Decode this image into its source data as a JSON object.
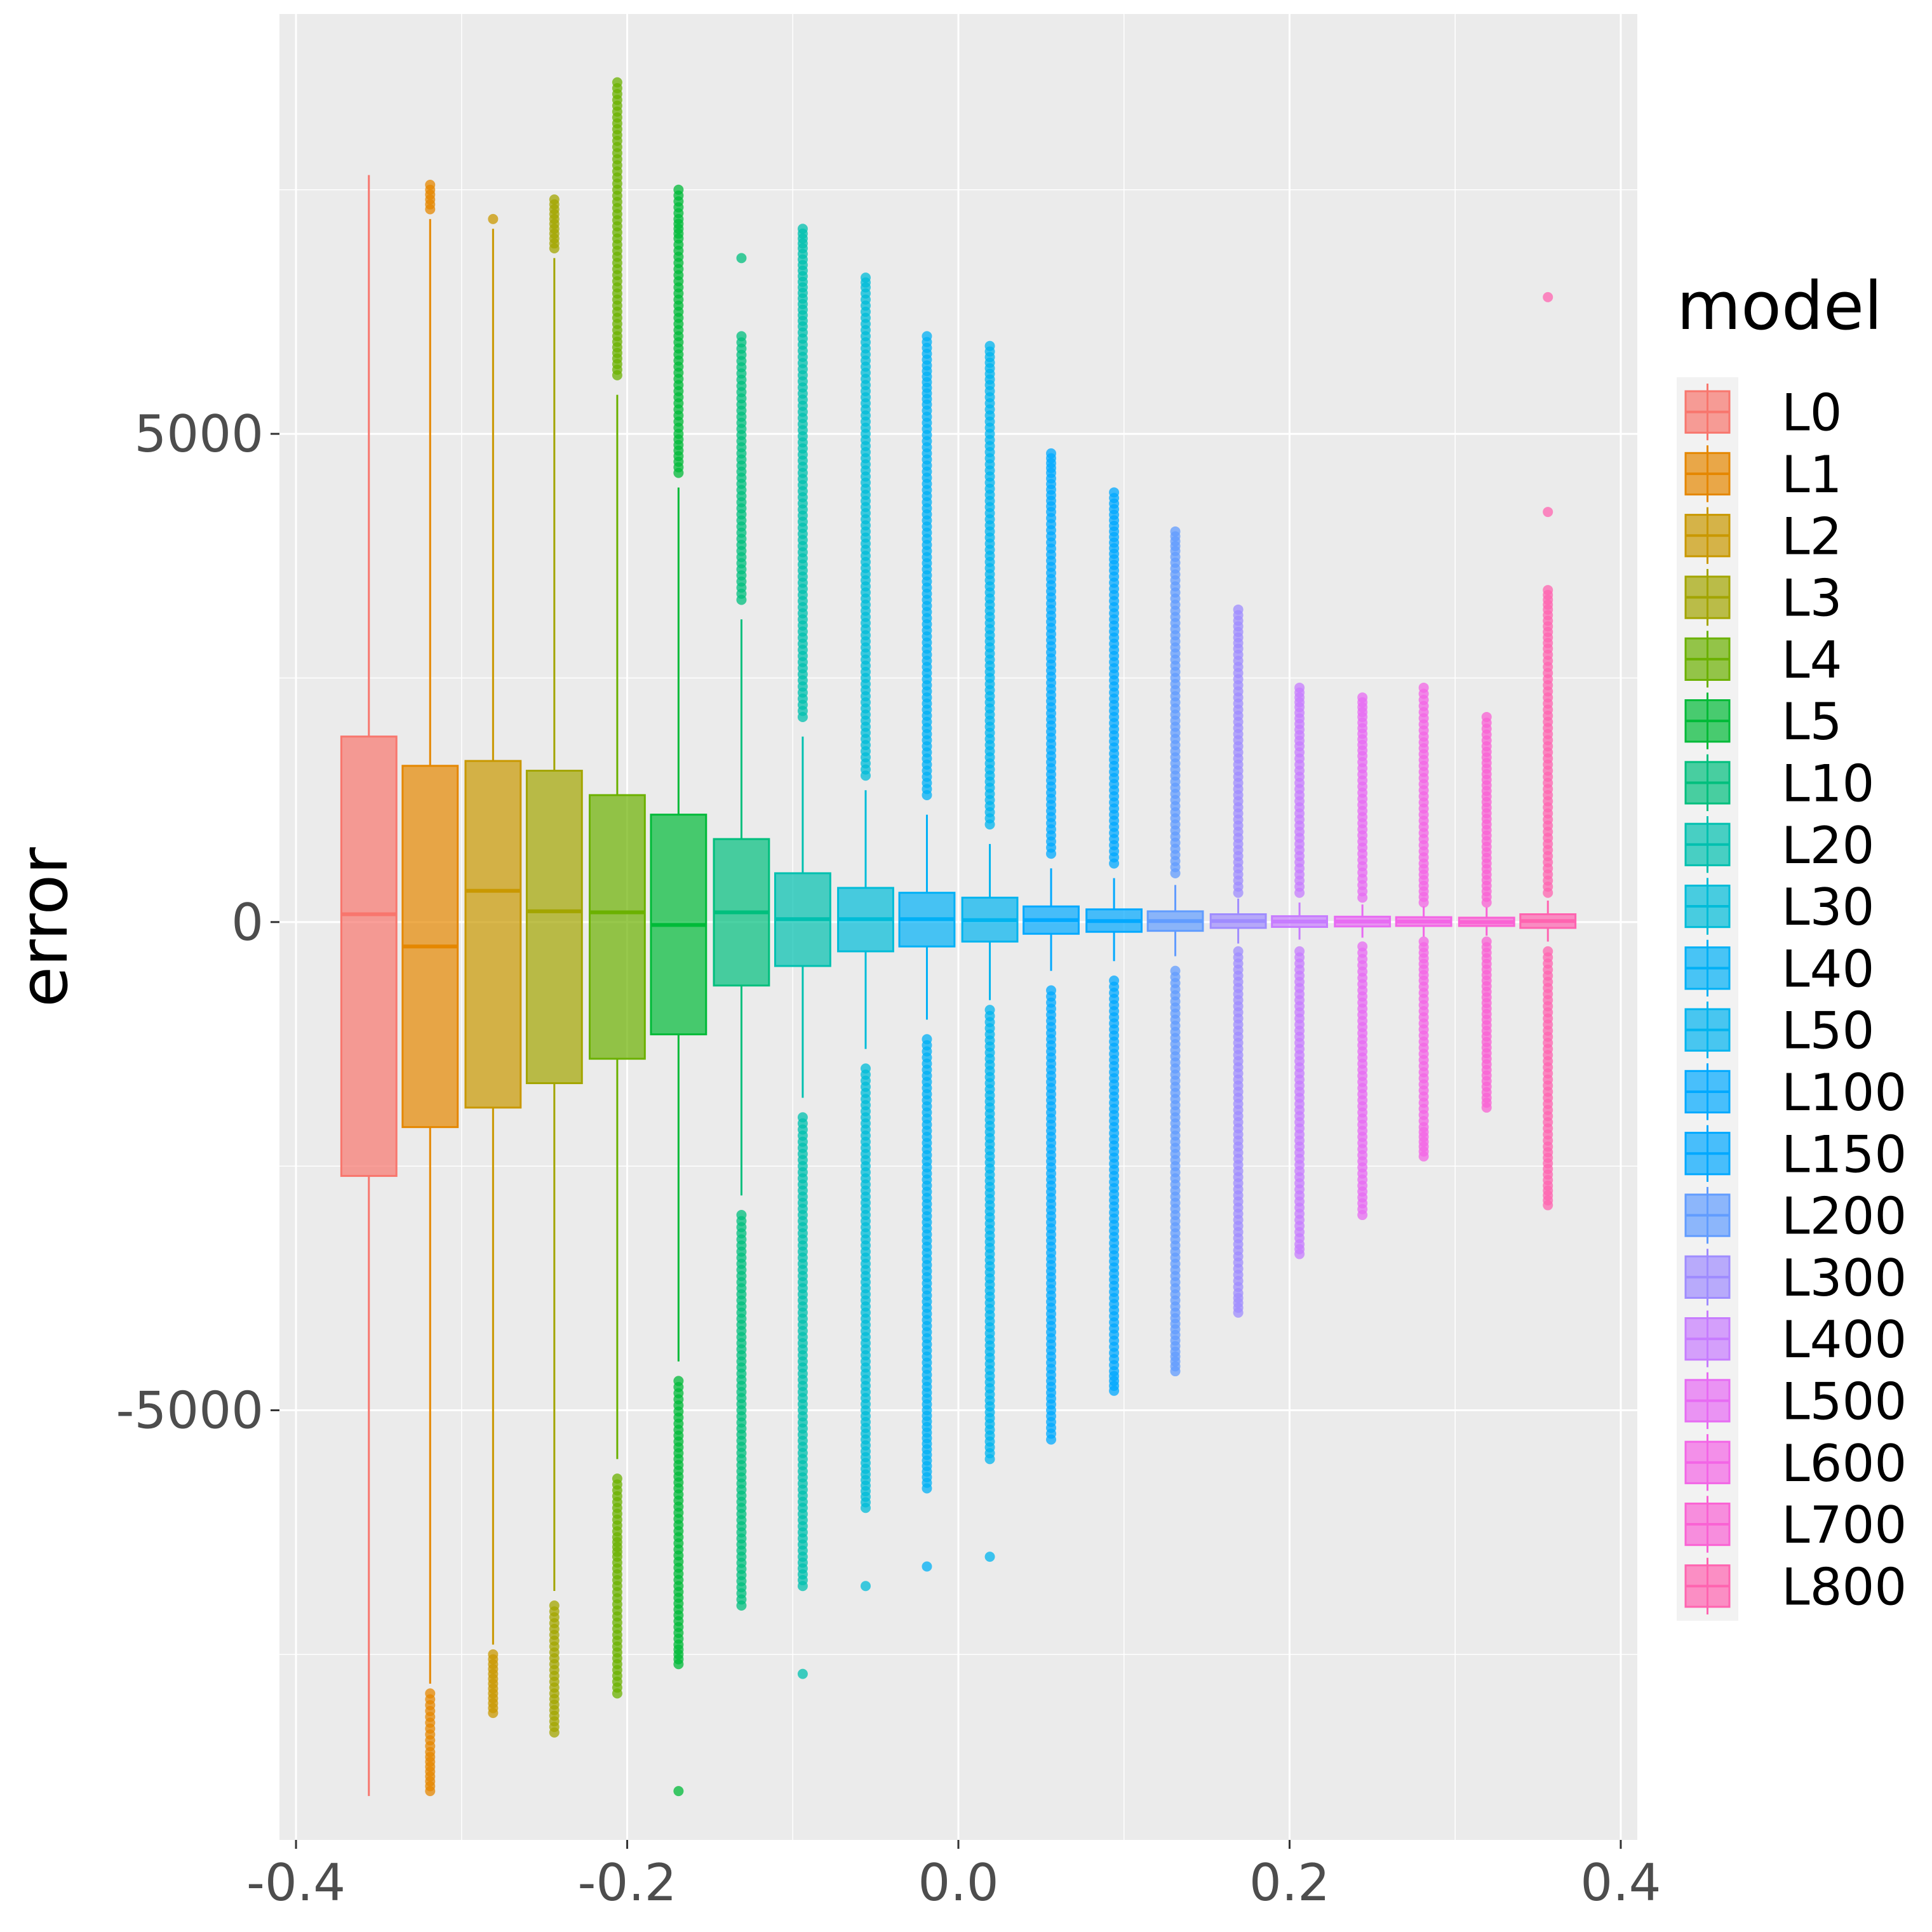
{
  "chart_data": {
    "type": "box",
    "title": "",
    "xlabel": "",
    "ylabel": "error",
    "xlim": [
      -0.41,
      0.41
    ],
    "ylim": [
      -9400,
      9300
    ],
    "x_ticks": [
      -0.4,
      -0.2,
      0.0,
      0.2,
      0.4
    ],
    "x_tick_labels": [
      "-0.4",
      "-0.2",
      "0.0",
      "0.2",
      "0.4"
    ],
    "y_ticks": [
      -5000,
      0,
      5000
    ],
    "y_tick_labels": [
      "-5000",
      "0",
      "5000"
    ],
    "grid": true,
    "legend": {
      "title": "model",
      "position": "right"
    },
    "series": [
      {
        "name": "L0",
        "color": "#F8766D",
        "x": -0.356,
        "q1": -2600,
        "median": 80,
        "q3": 1900,
        "whisker_low": -8950,
        "whisker_high": 7650,
        "outliers_low": [],
        "outliers_high": []
      },
      {
        "name": "L1",
        "color": "#E58700",
        "x": -0.319,
        "q1": -2100,
        "median": -250,
        "q3": 1600,
        "whisker_low": -7800,
        "whisker_high": 7200,
        "outliers_low": [
          -7900,
          -8200,
          -8500,
          -8700,
          -8800,
          -8900
        ],
        "outliers_high": [
          7300,
          7450,
          7550
        ]
      },
      {
        "name": "L2",
        "color": "#C99800",
        "x": -0.281,
        "q1": -1900,
        "median": 320,
        "q3": 1650,
        "whisker_low": -7400,
        "whisker_high": 7100,
        "outliers_low": [
          -7500,
          -7700,
          -7900,
          -8100
        ],
        "outliers_high": [
          7200
        ]
      },
      {
        "name": "L3",
        "color": "#A3A500",
        "x": -0.244,
        "q1": -1650,
        "median": 110,
        "q3": 1550,
        "whisker_low": -6850,
        "whisker_high": 6800,
        "outliers_low": [
          -7000,
          -7300,
          -7600,
          -7900,
          -8300
        ],
        "outliers_high": [
          6900,
          7100,
          7300,
          7400
        ]
      },
      {
        "name": "L4",
        "color": "#6BB100",
        "x": -0.206,
        "q1": -1400,
        "median": 100,
        "q3": 1300,
        "whisker_low": -5500,
        "whisker_high": 5400,
        "outliers_low": [
          -5700,
          -6000,
          -6300,
          -6500,
          -6800,
          -7300,
          -7900
        ],
        "outliers_high": [
          5600,
          6000,
          6500,
          7000,
          7500,
          8000,
          8300,
          8600
        ]
      },
      {
        "name": "L5",
        "color": "#00BA38",
        "x": -0.169,
        "q1": -1150,
        "median": -30,
        "q3": 1100,
        "whisker_low": -4500,
        "whisker_high": 4450,
        "outliers_low": [
          -4700,
          -5200,
          -5800,
          -6300,
          -6800,
          -7100,
          -7400,
          -7600,
          -8900
        ],
        "outliers_high": [
          4600,
          5000,
          5500,
          6000,
          6500,
          7000,
          7200,
          7500
        ]
      },
      {
        "name": "L10",
        "color": "#00BF7D",
        "x": -0.131,
        "q1": -650,
        "median": 100,
        "q3": 850,
        "whisker_low": -2800,
        "whisker_high": 3100,
        "outliers_low": [
          -3000,
          -3500,
          -4000,
          -4500,
          -5000,
          -5500,
          -6000,
          -6500,
          -7000
        ],
        "outliers_high": [
          3300,
          3800,
          4300,
          4800,
          5300,
          6000,
          6800
        ]
      },
      {
        "name": "L20",
        "color": "#00C0AF",
        "x": -0.094,
        "q1": -450,
        "median": 30,
        "q3": 500,
        "whisker_low": -1800,
        "whisker_high": 1900,
        "outliers_low": [
          -2000,
          -2500,
          -3000,
          -3500,
          -4000,
          -4500,
          -5000,
          -5500,
          -6000,
          -6500,
          -6800,
          -7700
        ],
        "outliers_high": [
          2100,
          2600,
          3100,
          3600,
          4100,
          4600,
          5100,
          5600,
          6100,
          6500,
          6900,
          7100
        ]
      },
      {
        "name": "L30",
        "color": "#00BCD8",
        "x": -0.056,
        "q1": -300,
        "median": 30,
        "q3": 350,
        "whisker_low": -1300,
        "whisker_high": 1350,
        "outliers_low": [
          -1500,
          -2000,
          -2500,
          -3000,
          -3500,
          -4000,
          -4500,
          -5000,
          -5300,
          -5600,
          -6000,
          -6800
        ],
        "outliers_high": [
          1500,
          2000,
          2500,
          3000,
          3500,
          4000,
          4500,
          5000,
          5500,
          6000,
          6500,
          6600
        ]
      },
      {
        "name": "L40",
        "color": "#00B0F6",
        "x": -0.019,
        "q1": -250,
        "median": 30,
        "q3": 300,
        "whisker_low": -1000,
        "whisker_high": 1100,
        "outliers_low": [
          -1200,
          -1700,
          -2200,
          -2700,
          -3200,
          -3700,
          -4200,
          -4700,
          -5000,
          -5400,
          -5800,
          -6600
        ],
        "outliers_high": [
          1300,
          1800,
          2300,
          2800,
          3300,
          3800,
          4300,
          4800,
          5300,
          5700,
          6000
        ]
      },
      {
        "name": "L50",
        "color": "#00B4EF",
        "x": 0.019,
        "q1": -200,
        "median": 20,
        "q3": 250,
        "whisker_low": -800,
        "whisker_high": 800,
        "outliers_low": [
          -900,
          -1400,
          -1900,
          -2400,
          -2900,
          -3400,
          -3900,
          -4400,
          -4900,
          -5200,
          -5500,
          -6500
        ],
        "outliers_high": [
          1000,
          1500,
          2000,
          2500,
          3000,
          3500,
          4000,
          4500,
          5000,
          5500,
          5900
        ]
      },
      {
        "name": "L100",
        "color": "#00A9FF",
        "x": 0.056,
        "q1": -120,
        "median": 20,
        "q3": 160,
        "whisker_low": -500,
        "whisker_high": 550,
        "outliers_low": [
          -700,
          -1200,
          -1700,
          -2200,
          -2700,
          -3200,
          -3700,
          -4200,
          -4700,
          -5000,
          -5300
        ],
        "outliers_high": [
          700,
          1200,
          1700,
          2200,
          2700,
          3200,
          3700,
          4200,
          4600,
          4800
        ]
      },
      {
        "name": "L150",
        "color": "#00A8FF",
        "x": 0.094,
        "q1": -100,
        "median": 10,
        "q3": 130,
        "whisker_low": -400,
        "whisker_high": 450,
        "outliers_low": [
          -600,
          -1100,
          -1600,
          -2100,
          -2600,
          -3100,
          -3600,
          -4100,
          -4600,
          -4800
        ],
        "outliers_high": [
          600,
          1100,
          1600,
          2100,
          2600,
          3100,
          3600,
          4000,
          4400
        ]
      },
      {
        "name": "L200",
        "color": "#619CFF",
        "x": 0.131,
        "q1": -90,
        "median": 10,
        "q3": 110,
        "whisker_low": -350,
        "whisker_high": 380,
        "outliers_low": [
          -500,
          -1000,
          -1500,
          -2000,
          -2500,
          -3000,
          -3500,
          -4000,
          -4400,
          -4600
        ],
        "outliers_high": [
          500,
          1000,
          1500,
          2000,
          2500,
          3000,
          3500,
          3800,
          4000
        ]
      },
      {
        "name": "L300",
        "color": "#9F8CFF",
        "x": 0.169,
        "q1": -60,
        "median": 10,
        "q3": 80,
        "whisker_low": -220,
        "whisker_high": 240,
        "outliers_low": [
          -300,
          -800,
          -1300,
          -1800,
          -2300,
          -2800,
          -3300,
          -3800,
          -4000
        ],
        "outliers_high": [
          300,
          800,
          1300,
          1800,
          2300,
          2800,
          3200
        ]
      },
      {
        "name": "L400",
        "color": "#C77CFF",
        "x": 0.206,
        "q1": -50,
        "median": 5,
        "q3": 60,
        "whisker_low": -180,
        "whisker_high": 200,
        "outliers_low": [
          -300,
          -800,
          -1300,
          -1800,
          -2300,
          -2800,
          -3300,
          -3400
        ],
        "outliers_high": [
          300,
          800,
          1300,
          1800,
          2200,
          2400
        ]
      },
      {
        "name": "L500",
        "color": "#E76BF3",
        "x": 0.244,
        "q1": -45,
        "median": 5,
        "q3": 55,
        "whisker_low": -160,
        "whisker_high": 180,
        "outliers_low": [
          -250,
          -700,
          -1200,
          -1700,
          -2200,
          -2700,
          -3000
        ],
        "outliers_high": [
          250,
          700,
          1200,
          1700,
          2100,
          2300
        ]
      },
      {
        "name": "L600",
        "color": "#F365E6",
        "x": 0.281,
        "q1": -40,
        "median": 5,
        "q3": 50,
        "whisker_low": -150,
        "whisker_high": 160,
        "outliers_low": [
          -200,
          -600,
          -1100,
          -1600,
          -2100,
          -2300,
          -2400
        ],
        "outliers_high": [
          200,
          600,
          1100,
          1600,
          1900,
          2400
        ]
      },
      {
        "name": "L700",
        "color": "#FA62D4",
        "x": 0.319,
        "q1": -40,
        "median": 0,
        "q3": 45,
        "whisker_low": -140,
        "whisker_high": 150,
        "outliers_low": [
          -200,
          -600,
          -1000,
          -1400,
          -1800,
          -1900
        ],
        "outliers_high": [
          200,
          600,
          1000,
          1400,
          1800,
          2100
        ]
      },
      {
        "name": "L800",
        "color": "#FF64B0",
        "x": 0.356,
        "q1": -60,
        "median": 10,
        "q3": 80,
        "whisker_low": -200,
        "whisker_high": 220,
        "outliers_low": [
          -300,
          -800,
          -1300,
          -1800,
          -2300,
          -2700,
          -2800,
          -2900
        ],
        "outliers_high": [
          300,
          800,
          1300,
          1800,
          2300,
          2800,
          3200,
          3400,
          4200,
          6400
        ]
      }
    ]
  }
}
